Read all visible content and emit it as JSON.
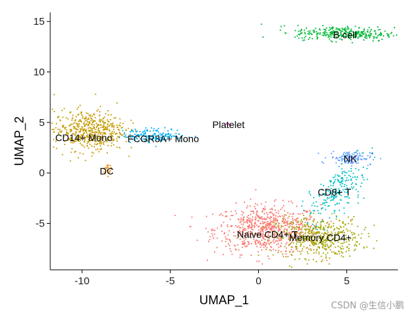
{
  "chart_data": {
    "type": "scatter",
    "xlabel": "UMAP_1",
    "ylabel": "UMAP_2",
    "xlim": [
      -11.8,
      7.9
    ],
    "ylim": [
      -9.6,
      15.9
    ],
    "xticks": [
      -10,
      -5,
      0,
      5
    ],
    "yticks": [
      -5,
      0,
      5,
      10,
      15
    ],
    "grid": false,
    "legend": "none",
    "clusters": [
      {
        "name": "Naive CD4+ T",
        "color": "#F8766D",
        "cx": 0.5,
        "cy": -5.6,
        "sx": 1.5,
        "sy": 1.2,
        "n": 700,
        "label_x": 0.5,
        "label_y": -6.1
      },
      {
        "name": "Memory CD4+",
        "color": "#A3A500",
        "cx": 3.4,
        "cy": -6.4,
        "sx": 1.2,
        "sy": 1.0,
        "n": 480,
        "label_x": 3.5,
        "label_y": -6.4
      },
      {
        "name": "CD8+ T",
        "color": "#00BFC4",
        "cx": 4.4,
        "cy": -1.9,
        "sx": 0.6,
        "sy": 1.5,
        "n": 220,
        "label_x": 4.3,
        "label_y": -1.9
      },
      {
        "name": "NK",
        "color": "#619CFF",
        "cx": 5.2,
        "cy": 1.5,
        "sx": 0.6,
        "sy": 0.35,
        "n": 120,
        "label_x": 5.2,
        "label_y": 1.4
      },
      {
        "name": "B cell",
        "color": "#00BA38",
        "cx": 4.9,
        "cy": 13.8,
        "sx": 1.4,
        "sy": 0.35,
        "n": 320,
        "label_x": 4.9,
        "label_y": 13.7
      },
      {
        "name": "CD14+ Mono",
        "color": "#C49A00",
        "cx": -9.6,
        "cy": 4.2,
        "sx": 1.0,
        "sy": 1.0,
        "n": 520,
        "label_x": -9.9,
        "label_y": 3.5
      },
      {
        "name": "FCGR3A+ Mono",
        "color": "#00B0F6",
        "cx": -5.9,
        "cy": 3.7,
        "sx": 0.9,
        "sy": 0.35,
        "n": 170,
        "label_x": -5.4,
        "label_y": 3.4
      },
      {
        "name": "DC",
        "color": "#E58700",
        "cx": -8.6,
        "cy": 0.4,
        "sx": 0.12,
        "sy": 0.25,
        "n": 20,
        "label_x": -8.6,
        "label_y": 0.2
      },
      {
        "name": "Platelet",
        "color": "#FF61CC",
        "cx": -1.7,
        "cy": 4.8,
        "sx": 0.05,
        "sy": 0.05,
        "n": 5,
        "label_x": -1.7,
        "label_y": 4.8
      }
    ]
  },
  "watermark": "CSDN @生信小鹏"
}
